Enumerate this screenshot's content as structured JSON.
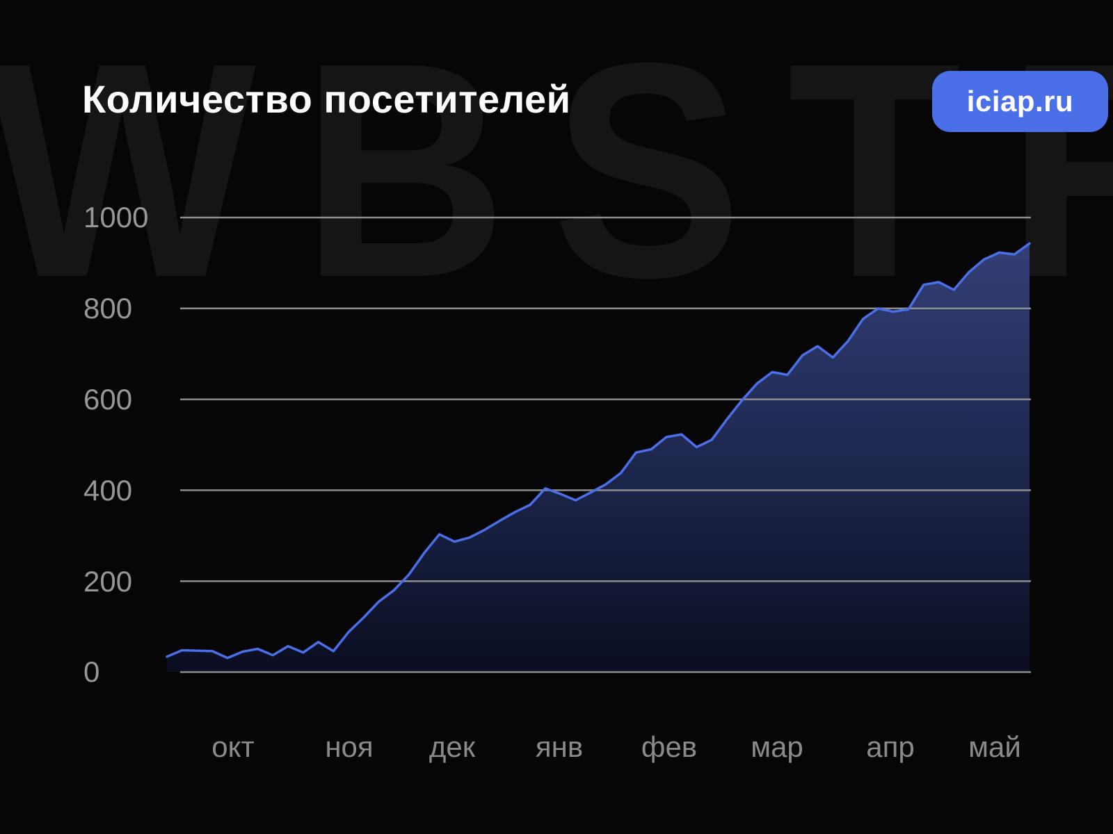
{
  "header": {
    "title": "Количество посетителей",
    "badge_label": "iciap.ru"
  },
  "watermark_text": "WBSTR",
  "chart_data": {
    "type": "area",
    "title": "Количество посетителей",
    "xlabel": "",
    "ylabel": "",
    "x_tick_labels": [
      "окт",
      "ноя",
      "дек",
      "янв",
      "фев",
      "мар",
      "апр",
      "май"
    ],
    "y_tick_labels": [
      "1000",
      "800",
      "600",
      "400",
      "200",
      "0"
    ],
    "y_ticks": [
      1000,
      800,
      600,
      400,
      200,
      0
    ],
    "ylim": [
      0,
      1000
    ],
    "grid": "horizontal",
    "legend": false,
    "sampling": "weekly points from early October to mid May",
    "series": [
      {
        "name": "visitors",
        "values": [
          34,
          48,
          47,
          46,
          31,
          45,
          51,
          37,
          57,
          43,
          66,
          46,
          88,
          120,
          155,
          180,
          215,
          262,
          303,
          287,
          296,
          313,
          333,
          352,
          368,
          404,
          392,
          378,
          395,
          413,
          438,
          483,
          490,
          517,
          523,
          495,
          511,
          556,
          598,
          635,
          660,
          654,
          697,
          717,
          692,
          728,
          777,
          800,
          793,
          798,
          852,
          858,
          841,
          880,
          908,
          923,
          919,
          943
        ]
      }
    ],
    "colors": {
      "line": "#4a6fe8",
      "area_top": "#333f76",
      "area_mid": "#1e2850",
      "area_bottom": "#0a0d20",
      "grid": "#8e8e91",
      "badge": "#4b6fe8",
      "background": "#060607",
      "watermark": "#151515"
    }
  }
}
